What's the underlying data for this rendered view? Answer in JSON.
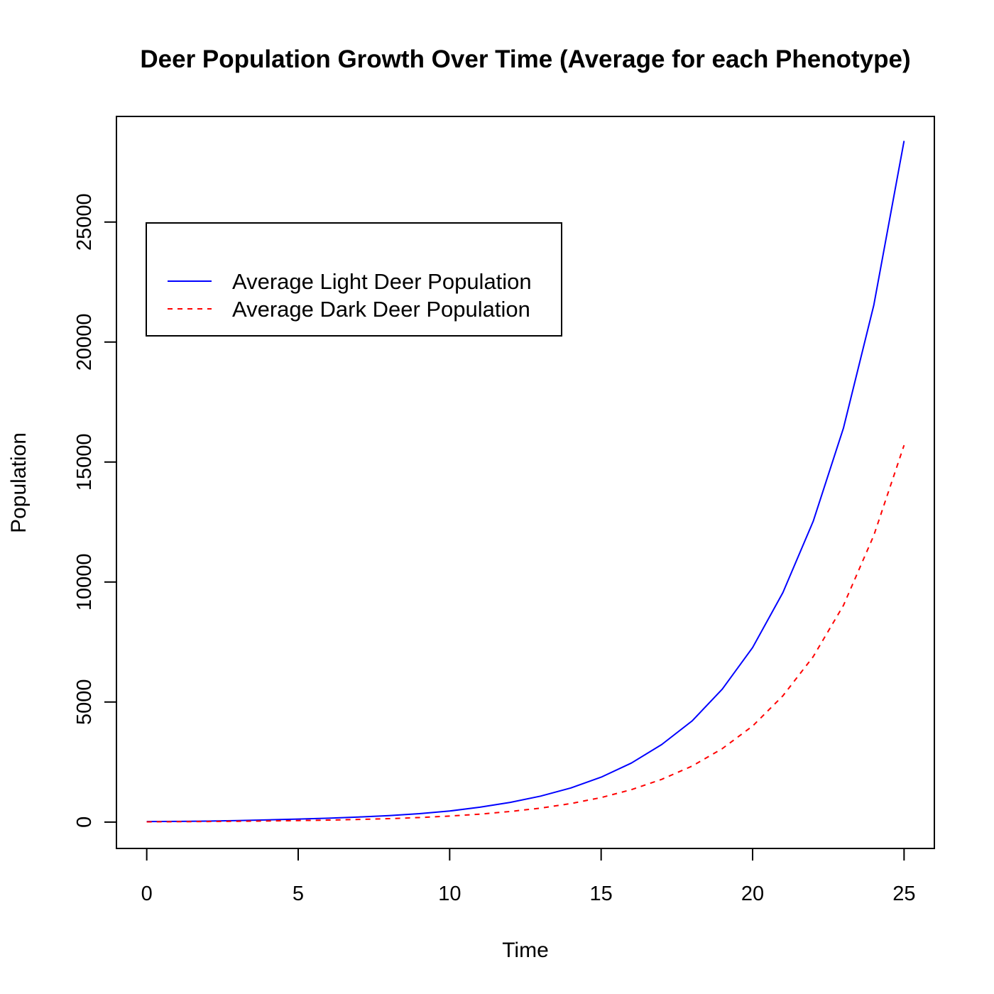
{
  "chart_data": {
    "type": "line",
    "title": "Deer Population Growth Over Time (Average for each Phenotype)",
    "xlabel": "Time",
    "ylabel": "Population",
    "xlim": [
      0,
      25
    ],
    "ylim": [
      -1100,
      29400
    ],
    "x_ticks": [
      0,
      5,
      10,
      15,
      20,
      25
    ],
    "y_ticks": [
      0,
      5000,
      10000,
      15000,
      20000,
      25000
    ],
    "grid": false,
    "legend_position": "top-left",
    "x": [
      0,
      1,
      2,
      3,
      4,
      5,
      6,
      7,
      8,
      9,
      10,
      11,
      12,
      13,
      14,
      15,
      16,
      17,
      18,
      19,
      20,
      21,
      22,
      23,
      24,
      25
    ],
    "series": [
      {
        "name": "Average Light Deer Population",
        "color": "#0000ff",
        "dash": "solid",
        "values": [
          20,
          27,
          40,
          60,
          90,
          125,
          160,
          210,
          270,
          350,
          460,
          620,
          820,
          1080,
          1420,
          1870,
          2460,
          3230,
          4210,
          5540,
          7270,
          9560,
          12530,
          16420,
          21530,
          28380
        ]
      },
      {
        "name": "Average Dark Deer Population",
        "color": "#ff0000",
        "dash": "dashed",
        "values": [
          10,
          15,
          22,
          32,
          45,
          62,
          82,
          108,
          142,
          188,
          250,
          330,
          440,
          580,
          770,
          1020,
          1350,
          1780,
          2330,
          3060,
          4000,
          5260,
          6890,
          9030,
          11940,
          15700
        ]
      }
    ]
  }
}
